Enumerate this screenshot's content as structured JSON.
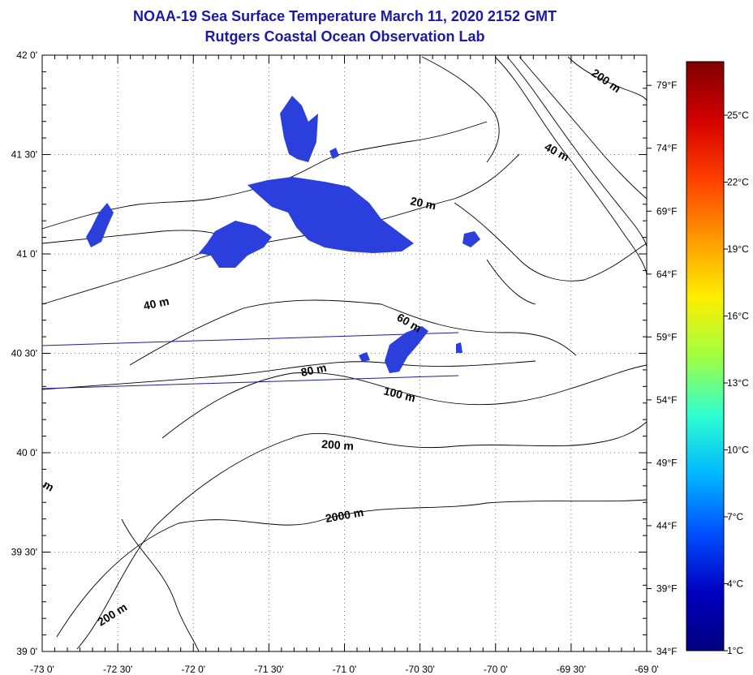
{
  "title": "NOAA-19 Sea Surface Temperature March 11, 2020 2152 GMT",
  "subtitle": "Rutgers Coastal Ocean Observation Lab",
  "lat_ticks": [
    {
      "label": "42 0'",
      "lat": 42.0
    },
    {
      "label": "41 30'",
      "lat": 41.5
    },
    {
      "label": "41 0'",
      "lat": 41.0
    },
    {
      "label": "40 30'",
      "lat": 40.5
    },
    {
      "label": "40 0'",
      "lat": 40.0
    },
    {
      "label": "39 30'",
      "lat": 39.5
    },
    {
      "label": "39 0'",
      "lat": 39.0
    }
  ],
  "lon_ticks": [
    {
      "label": "-73 0'",
      "lon": -73.0
    },
    {
      "label": "-72 30'",
      "lon": -72.5
    },
    {
      "label": "-72 0'",
      "lon": -72.0
    },
    {
      "label": "-71 30'",
      "lon": -71.5
    },
    {
      "label": "-71 0'",
      "lon": -71.0
    },
    {
      "label": "-70 30'",
      "lon": -70.5
    },
    {
      "label": "-70 0'",
      "lon": -70.0
    },
    {
      "label": "-69 30'",
      "lon": -69.5
    },
    {
      "label": "-69 0'",
      "lon": -69.0
    }
  ],
  "fahrenheit_ticks": [
    "79°F",
    "74°F",
    "69°F",
    "64°F",
    "59°F",
    "54°F",
    "49°F",
    "44°F",
    "39°F",
    "34°F"
  ],
  "celsius_ticks": [
    "25°C",
    "22°C",
    "19°C",
    "16°C",
    "13°C",
    "10°C",
    "7°C",
    "4°C",
    "1°C"
  ],
  "colorbar_colors": [
    "#7f0000",
    "#d40000",
    "#ff4000",
    "#ff9900",
    "#ffee00",
    "#a0ff40",
    "#30ffd0",
    "#00b8ff",
    "#0050ff",
    "#0000c0",
    "#000080"
  ],
  "contour_labels": [
    "200 m",
    "40 m",
    "20 m",
    "40 m",
    "60 m",
    "80 m",
    "100 m",
    "200 m",
    "2000 m",
    "200 m",
    "m"
  ],
  "water_color": "#2a3fdb",
  "pass_line_color": "#1a1a9a"
}
